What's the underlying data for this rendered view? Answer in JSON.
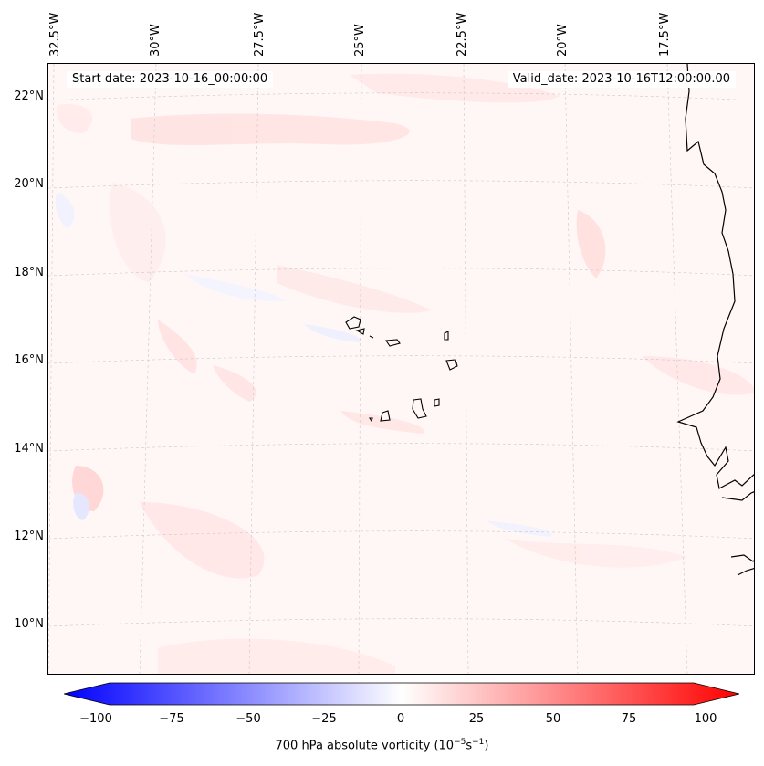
{
  "map": {
    "region": "Cabo Verde / West Africa coast",
    "start_date": "Start date: 2023-10-16_00:00:00",
    "valid_date": "Valid_date: 2023-10-16T12:00:00.00",
    "lon_labels": [
      "32.5°W",
      "30°W",
      "27.5°W",
      "25°W",
      "22.5°W",
      "20°W",
      "17.5°W"
    ],
    "lat_labels": [
      "22°N",
      "20°N",
      "18°N",
      "16°N",
      "14°N",
      "12°N",
      "10°N"
    ],
    "background_color": "#fff7f6",
    "coastline_color": "#000000",
    "gridline_color": "#c8c8c8"
  },
  "colorbar": {
    "label_prefix": "700 hPa absolute vorticity (10",
    "label_exp1": "−5",
    "label_mid": "s",
    "label_exp2": "−1",
    "label_suffix": ")",
    "ticks": [
      "−100",
      "−75",
      "−50",
      "−25",
      "0",
      "25",
      "50",
      "75",
      "100"
    ],
    "min_color": "#0000ff",
    "mid_color": "#ffffff",
    "max_color": "#ff0000"
  }
}
